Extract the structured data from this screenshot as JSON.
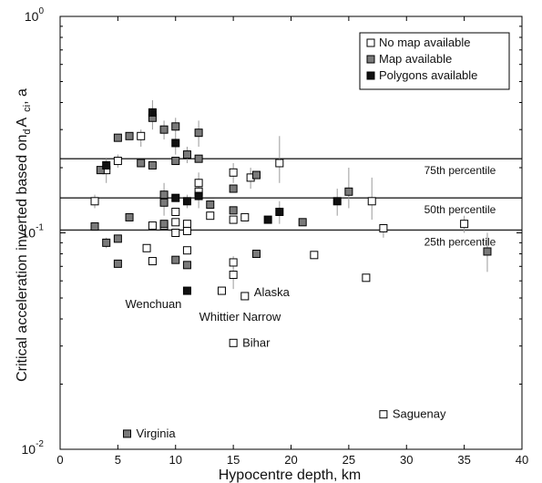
{
  "chart_data": {
    "type": "scatter",
    "xlabel": "Hypocentre depth, km",
    "ylabel_main": "Critical acceleration inverted based on",
    "ylabel_d": "d",
    "ylabel_A": "A",
    "ylabel_c": "c",
    "ylabel_i": "i",
    "ylabel_tail": ", a",
    "xlim": [
      0,
      40
    ],
    "ylim": [
      0.01,
      1
    ],
    "y_scale": "log",
    "x_ticks": [
      {
        "v": 0,
        "label": "0"
      },
      {
        "v": 5,
        "label": "5"
      },
      {
        "v": 10,
        "label": "10"
      },
      {
        "v": 15,
        "label": "15"
      },
      {
        "v": 20,
        "label": "20"
      },
      {
        "v": 25,
        "label": "25"
      },
      {
        "v": 30,
        "label": "30"
      },
      {
        "v": 35,
        "label": "35"
      },
      {
        "v": 40,
        "label": "40"
      }
    ],
    "y_ticks": [
      {
        "v": 0.01,
        "base": "10",
        "exp": "-2"
      },
      {
        "v": 0.1,
        "base": "10",
        "exp": "-1"
      },
      {
        "v": 1,
        "base": "10",
        "exp": "0"
      }
    ],
    "legend": {
      "position": "top-right",
      "entries": [
        {
          "label": "No map available",
          "fill": "#ffffff"
        },
        {
          "label": "Map available",
          "fill": "#7a7a7a"
        },
        {
          "label": "Polygons available",
          "fill": "#111111"
        }
      ]
    },
    "percentiles": [
      {
        "value": 0.22,
        "label": "75th percentile"
      },
      {
        "value": 0.145,
        "label": "50th percentile"
      },
      {
        "value": 0.103,
        "label": "25th percentile"
      }
    ],
    "annotations": [
      {
        "text": "Wenchuan",
        "x": 11,
        "y": 0.054
      },
      {
        "text": "Whittier Narrow",
        "x": 14,
        "y": 0.053
      },
      {
        "text": "Alaska",
        "x": 16,
        "y": 0.051
      },
      {
        "text": "Bihar",
        "x": 15,
        "y": 0.031
      },
      {
        "text": "Saguenay",
        "x": 28,
        "y": 0.0145
      },
      {
        "text": "Virginia",
        "x": 5.8,
        "y": 0.0118
      }
    ],
    "series": [
      {
        "name": "No map available",
        "fill": "#ffffff",
        "points": [
          {
            "x": 3,
            "y": 0.14,
            "lo": 0.13,
            "hi": 0.15
          },
          {
            "x": 4,
            "y": 0.195,
            "lo": 0.17,
            "hi": 0.22
          },
          {
            "x": 5,
            "y": 0.215,
            "lo": 0.2,
            "hi": 0.23
          },
          {
            "x": 7,
            "y": 0.28,
            "lo": 0.25,
            "hi": 0.3
          },
          {
            "x": 8,
            "y": 0.108
          },
          {
            "x": 7.5,
            "y": 0.085
          },
          {
            "x": 8,
            "y": 0.074
          },
          {
            "x": 9,
            "y": 0.108
          },
          {
            "x": 10,
            "y": 0.125
          },
          {
            "x": 10,
            "y": 0.112
          },
          {
            "x": 10,
            "y": 0.1
          },
          {
            "x": 11,
            "y": 0.11
          },
          {
            "x": 11,
            "y": 0.102
          },
          {
            "x": 11,
            "y": 0.083
          },
          {
            "x": 12,
            "y": 0.17,
            "lo": 0.15,
            "hi": 0.19
          },
          {
            "x": 12,
            "y": 0.155
          },
          {
            "x": 13,
            "y": 0.12
          },
          {
            "x": 15,
            "y": 0.19,
            "lo": 0.17,
            "hi": 0.21
          },
          {
            "x": 15,
            "y": 0.115
          },
          {
            "x": 16,
            "y": 0.118
          },
          {
            "x": 16.5,
            "y": 0.18,
            "lo": 0.16,
            "hi": 0.2
          },
          {
            "x": 15,
            "y": 0.073,
            "lo": 0.068,
            "hi": 0.078
          },
          {
            "x": 15,
            "y": 0.064,
            "lo": 0.055,
            "hi": 0.07
          },
          {
            "x": 14,
            "y": 0.054
          },
          {
            "x": 16,
            "y": 0.051
          },
          {
            "x": 15,
            "y": 0.031
          },
          {
            "x": 19,
            "y": 0.21,
            "lo": 0.17,
            "hi": 0.28
          },
          {
            "x": 22,
            "y": 0.079
          },
          {
            "x": 26.5,
            "y": 0.062
          },
          {
            "x": 27,
            "y": 0.14,
            "lo": 0.115,
            "hi": 0.18
          },
          {
            "x": 28,
            "y": 0.105,
            "lo": 0.095,
            "hi": 0.11
          },
          {
            "x": 35,
            "y": 0.11,
            "lo": 0.1,
            "hi": 0.12
          },
          {
            "x": 28,
            "y": 0.0145
          }
        ]
      },
      {
        "name": "Map available",
        "fill": "#7a7a7a",
        "points": [
          {
            "x": 3,
            "y": 0.107
          },
          {
            "x": 3.5,
            "y": 0.195
          },
          {
            "x": 4,
            "y": 0.09,
            "lo": 0.085,
            "hi": 0.095
          },
          {
            "x": 5,
            "y": 0.094
          },
          {
            "x": 5,
            "y": 0.072
          },
          {
            "x": 5,
            "y": 0.275
          },
          {
            "x": 6,
            "y": 0.28
          },
          {
            "x": 6,
            "y": 0.118
          },
          {
            "x": 7,
            "y": 0.21
          },
          {
            "x": 8,
            "y": 0.205
          },
          {
            "x": 8,
            "y": 0.34,
            "lo": 0.3,
            "hi": 0.38
          },
          {
            "x": 9,
            "y": 0.3,
            "lo": 0.27,
            "hi": 0.33
          },
          {
            "x": 9,
            "y": 0.15,
            "lo": 0.12,
            "hi": 0.17
          },
          {
            "x": 9,
            "y": 0.138
          },
          {
            "x": 9,
            "y": 0.11
          },
          {
            "x": 10,
            "y": 0.31,
            "lo": 0.29,
            "hi": 0.34
          },
          {
            "x": 10,
            "y": 0.215
          },
          {
            "x": 10,
            "y": 0.075
          },
          {
            "x": 11,
            "y": 0.23,
            "lo": 0.21,
            "hi": 0.25
          },
          {
            "x": 11,
            "y": 0.071
          },
          {
            "x": 12,
            "y": 0.29,
            "lo": 0.25,
            "hi": 0.33
          },
          {
            "x": 12,
            "y": 0.22
          },
          {
            "x": 13,
            "y": 0.135
          },
          {
            "x": 15,
            "y": 0.16
          },
          {
            "x": 15,
            "y": 0.127
          },
          {
            "x": 17,
            "y": 0.185
          },
          {
            "x": 17,
            "y": 0.08
          },
          {
            "x": 21,
            "y": 0.112
          },
          {
            "x": 25,
            "y": 0.155,
            "lo": 0.13,
            "hi": 0.2
          },
          {
            "x": 37,
            "y": 0.082,
            "lo": 0.066,
            "hi": 0.1
          },
          {
            "x": 5.8,
            "y": 0.0118
          }
        ]
      },
      {
        "name": "Polygons available",
        "fill": "#111111",
        "points": [
          {
            "x": 4,
            "y": 0.205
          },
          {
            "x": 8,
            "y": 0.36,
            "lo": 0.33,
            "hi": 0.41
          },
          {
            "x": 10,
            "y": 0.26,
            "lo": 0.23,
            "hi": 0.29
          },
          {
            "x": 10,
            "y": 0.145
          },
          {
            "x": 11,
            "y": 0.14,
            "lo": 0.13,
            "hi": 0.15
          },
          {
            "x": 12,
            "y": 0.148,
            "lo": 0.13,
            "hi": 0.17
          },
          {
            "x": 11,
            "y": 0.054
          },
          {
            "x": 18,
            "y": 0.115
          },
          {
            "x": 19,
            "y": 0.125,
            "lo": 0.11,
            "hi": 0.14
          },
          {
            "x": 24,
            "y": 0.14,
            "lo": 0.12,
            "hi": 0.16
          }
        ]
      }
    ]
  }
}
